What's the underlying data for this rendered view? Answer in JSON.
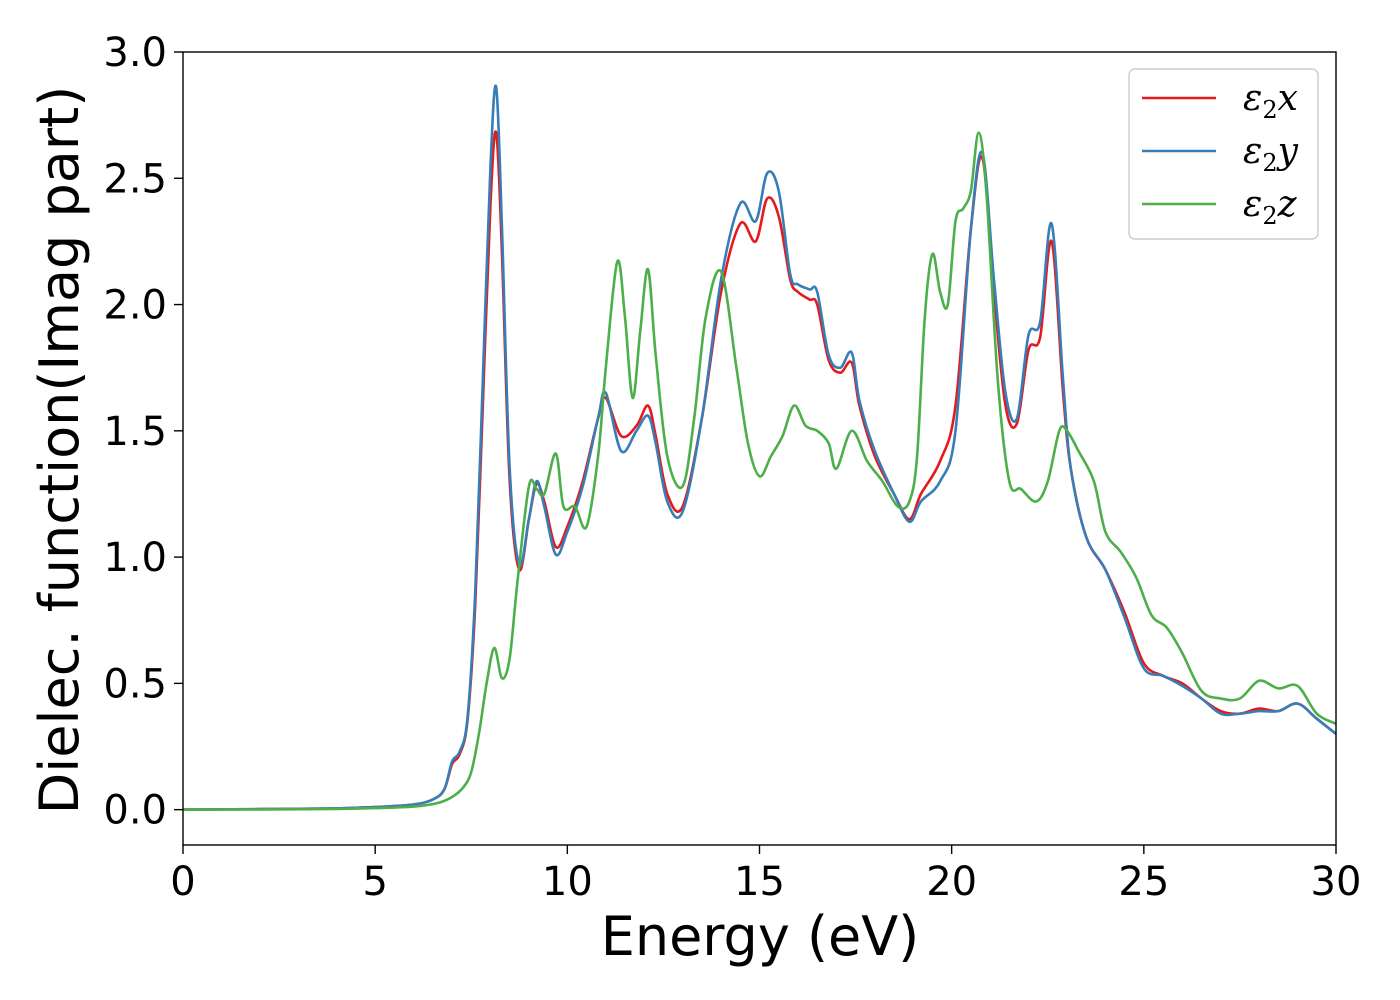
{
  "chart_data": {
    "type": "line",
    "xlabel": "Energy (eV)",
    "ylabel": "Dielec. function(Imag part)",
    "xlim": [
      0,
      30
    ],
    "ylim": [
      -0.14,
      3.0
    ],
    "xticks": [
      "0",
      "5",
      "10",
      "15",
      "20",
      "25",
      "30"
    ],
    "yticks": [
      "0.0",
      "0.5",
      "1.0",
      "1.5",
      "2.0",
      "2.5",
      "3.0"
    ],
    "grid": false,
    "legend_position": "top-right",
    "series": [
      {
        "name": "ε₂x",
        "legend_base": "ε",
        "legend_sub": "2",
        "legend_suffix": "x",
        "color": "#e41a1c",
        "x": [
          0,
          2,
          4,
          5,
          6,
          6.5,
          6.8,
          7.0,
          7.2,
          7.4,
          7.6,
          7.8,
          8.0,
          8.15,
          8.3,
          8.5,
          8.75,
          9.0,
          9.2,
          9.4,
          9.7,
          10.0,
          10.4,
          10.8,
          11.0,
          11.4,
          11.8,
          12.1,
          12.3,
          12.6,
          13.0,
          13.5,
          14.0,
          14.5,
          14.9,
          15.2,
          15.5,
          15.8,
          16.0,
          16.3,
          16.5,
          16.8,
          17.1,
          17.4,
          17.6,
          18.0,
          18.5,
          18.9,
          19.2,
          19.7,
          20.1,
          20.5,
          20.8,
          21.1,
          21.4,
          21.7,
          22.0,
          22.3,
          22.6,
          22.9,
          23.1,
          23.5,
          24.0,
          24.5,
          25.0,
          25.5,
          26.0,
          26.5,
          27.0,
          27.5,
          28.0,
          28.5,
          29.0,
          29.5,
          30.0
        ],
        "y": [
          0,
          0.002,
          0.005,
          0.01,
          0.02,
          0.04,
          0.08,
          0.18,
          0.22,
          0.35,
          0.8,
          1.6,
          2.4,
          2.68,
          2.2,
          1.3,
          0.95,
          1.15,
          1.29,
          1.22,
          1.04,
          1.12,
          1.3,
          1.55,
          1.63,
          1.48,
          1.52,
          1.6,
          1.48,
          1.25,
          1.2,
          1.55,
          2.05,
          2.32,
          2.25,
          2.42,
          2.35,
          2.1,
          2.05,
          2.02,
          2.0,
          1.78,
          1.73,
          1.77,
          1.6,
          1.4,
          1.25,
          1.15,
          1.25,
          1.38,
          1.6,
          2.3,
          2.58,
          2.05,
          1.6,
          1.53,
          1.82,
          1.87,
          2.25,
          1.65,
          1.35,
          1.08,
          0.95,
          0.78,
          0.58,
          0.53,
          0.5,
          0.44,
          0.39,
          0.38,
          0.4,
          0.39,
          0.42,
          0.36,
          0.3
        ]
      },
      {
        "name": "ε₂y",
        "legend_base": "ε",
        "legend_sub": "2",
        "legend_suffix": "y",
        "color": "#377eb8",
        "x": [
          0,
          2,
          4,
          5,
          6,
          6.5,
          6.8,
          7.0,
          7.2,
          7.4,
          7.6,
          7.8,
          8.0,
          8.15,
          8.3,
          8.5,
          8.75,
          9.0,
          9.2,
          9.4,
          9.7,
          10.0,
          10.4,
          10.8,
          11.0,
          11.4,
          11.8,
          12.1,
          12.3,
          12.6,
          13.0,
          13.5,
          14.0,
          14.5,
          14.9,
          15.2,
          15.5,
          15.8,
          16.0,
          16.3,
          16.5,
          16.8,
          17.1,
          17.4,
          17.6,
          18.0,
          18.5,
          18.9,
          19.2,
          19.7,
          20.1,
          20.5,
          20.8,
          21.1,
          21.4,
          21.7,
          22.0,
          22.3,
          22.6,
          22.9,
          23.1,
          23.5,
          24.0,
          24.5,
          25.0,
          25.5,
          26.0,
          26.5,
          27.0,
          27.5,
          28.0,
          28.5,
          29.0,
          29.5,
          30.0
        ],
        "y": [
          0,
          0.002,
          0.005,
          0.01,
          0.02,
          0.04,
          0.08,
          0.19,
          0.23,
          0.36,
          0.85,
          1.7,
          2.55,
          2.86,
          2.3,
          1.35,
          0.97,
          1.15,
          1.3,
          1.2,
          1.01,
          1.1,
          1.28,
          1.55,
          1.65,
          1.42,
          1.5,
          1.56,
          1.45,
          1.22,
          1.18,
          1.55,
          2.1,
          2.4,
          2.33,
          2.52,
          2.45,
          2.12,
          2.08,
          2.06,
          2.05,
          1.8,
          1.75,
          1.81,
          1.62,
          1.42,
          1.25,
          1.14,
          1.22,
          1.3,
          1.5,
          2.3,
          2.6,
          2.1,
          1.65,
          1.55,
          1.88,
          1.93,
          2.32,
          1.7,
          1.35,
          1.08,
          0.95,
          0.76,
          0.56,
          0.53,
          0.49,
          0.44,
          0.38,
          0.38,
          0.39,
          0.39,
          0.42,
          0.36,
          0.3
        ]
      },
      {
        "name": "ε₂z",
        "legend_base": "ε",
        "legend_sub": "2",
        "legend_suffix": "z",
        "color": "#4daf4a",
        "x": [
          0,
          2,
          4,
          5,
          6,
          6.6,
          7.0,
          7.3,
          7.5,
          7.7,
          7.9,
          8.1,
          8.3,
          8.5,
          8.7,
          9.0,
          9.2,
          9.4,
          9.7,
          9.9,
          10.2,
          10.5,
          10.8,
          11.0,
          11.3,
          11.5,
          11.7,
          11.9,
          12.1,
          12.3,
          12.6,
          13.0,
          13.3,
          13.6,
          14.0,
          14.4,
          14.7,
          15.0,
          15.3,
          15.6,
          15.9,
          16.2,
          16.5,
          16.8,
          17.0,
          17.4,
          17.8,
          18.2,
          18.6,
          18.9,
          19.1,
          19.3,
          19.5,
          19.7,
          19.9,
          20.1,
          20.3,
          20.5,
          20.7,
          20.9,
          21.2,
          21.5,
          21.8,
          22.2,
          22.5,
          22.8,
          23.0,
          23.3,
          23.7,
          24.0,
          24.4,
          24.8,
          25.2,
          25.6,
          26.0,
          26.5,
          27.0,
          27.5,
          28.0,
          28.5,
          29.0,
          29.5,
          30.0
        ],
        "y": [
          0,
          0.001,
          0.003,
          0.006,
          0.012,
          0.025,
          0.05,
          0.09,
          0.15,
          0.3,
          0.5,
          0.64,
          0.52,
          0.6,
          0.9,
          1.28,
          1.27,
          1.25,
          1.41,
          1.2,
          1.2,
          1.12,
          1.4,
          1.75,
          2.17,
          1.95,
          1.63,
          1.9,
          2.14,
          1.8,
          1.4,
          1.28,
          1.55,
          1.95,
          2.13,
          1.75,
          1.45,
          1.32,
          1.4,
          1.48,
          1.6,
          1.52,
          1.5,
          1.45,
          1.35,
          1.5,
          1.38,
          1.3,
          1.2,
          1.22,
          1.4,
          1.95,
          2.2,
          2.05,
          2.0,
          2.33,
          2.38,
          2.45,
          2.68,
          2.45,
          1.7,
          1.3,
          1.27,
          1.22,
          1.3,
          1.5,
          1.5,
          1.42,
          1.3,
          1.1,
          1.02,
          0.92,
          0.77,
          0.72,
          0.62,
          0.47,
          0.44,
          0.44,
          0.51,
          0.48,
          0.49,
          0.38,
          0.34
        ]
      }
    ]
  }
}
